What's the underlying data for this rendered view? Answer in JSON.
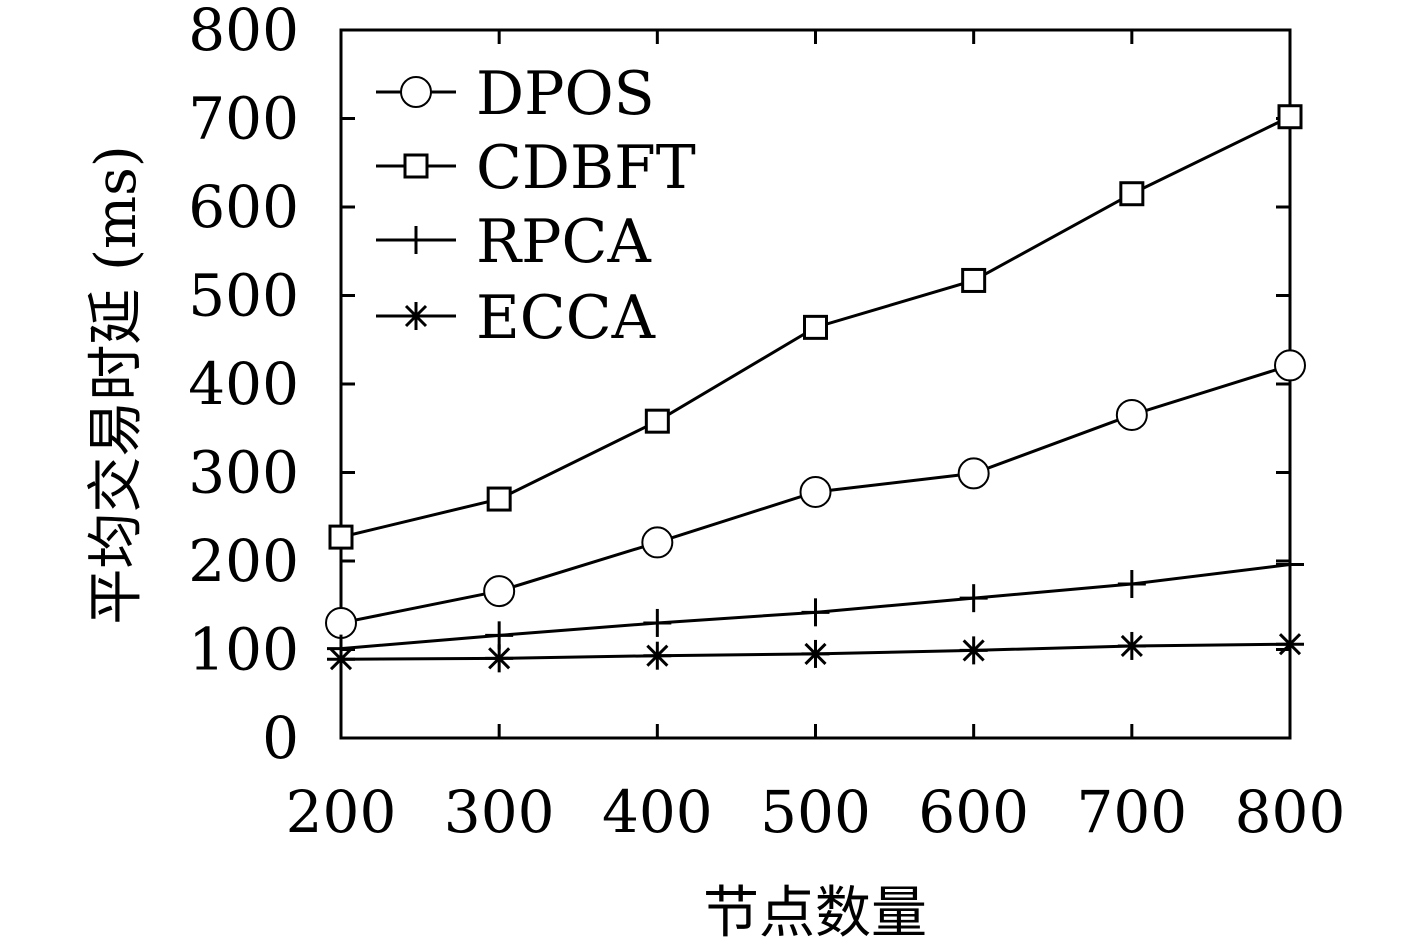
{
  "chart_data": {
    "type": "line",
    "title": "",
    "xlabel": "节点数量",
    "ylabel": "平均交易时延 (ms)",
    "x": [
      200,
      300,
      400,
      500,
      600,
      700,
      800
    ],
    "xticks": [
      "200",
      "300",
      "400",
      "500",
      "600",
      "700",
      "800"
    ],
    "yticks": [
      "0",
      "100",
      "200",
      "300",
      "400",
      "500",
      "600",
      "700",
      "800"
    ],
    "xlim": [
      200,
      800
    ],
    "ylim": [
      0,
      800
    ],
    "grid": false,
    "legend_position": "top-left",
    "series": [
      {
        "name": "DPOS",
        "marker": "circle",
        "values": [
          130,
          166,
          221,
          278,
          299,
          365,
          421
        ]
      },
      {
        "name": "CDBFT",
        "marker": "square",
        "values": [
          227,
          270,
          358,
          464,
          517,
          615,
          702
        ]
      },
      {
        "name": "RPCA",
        "marker": "plus",
        "values": [
          101,
          116,
          130,
          142,
          158,
          174,
          196
        ]
      },
      {
        "name": "ECCA",
        "marker": "asterisk",
        "values": [
          89,
          90,
          93,
          95,
          99,
          104,
          106
        ]
      }
    ]
  }
}
